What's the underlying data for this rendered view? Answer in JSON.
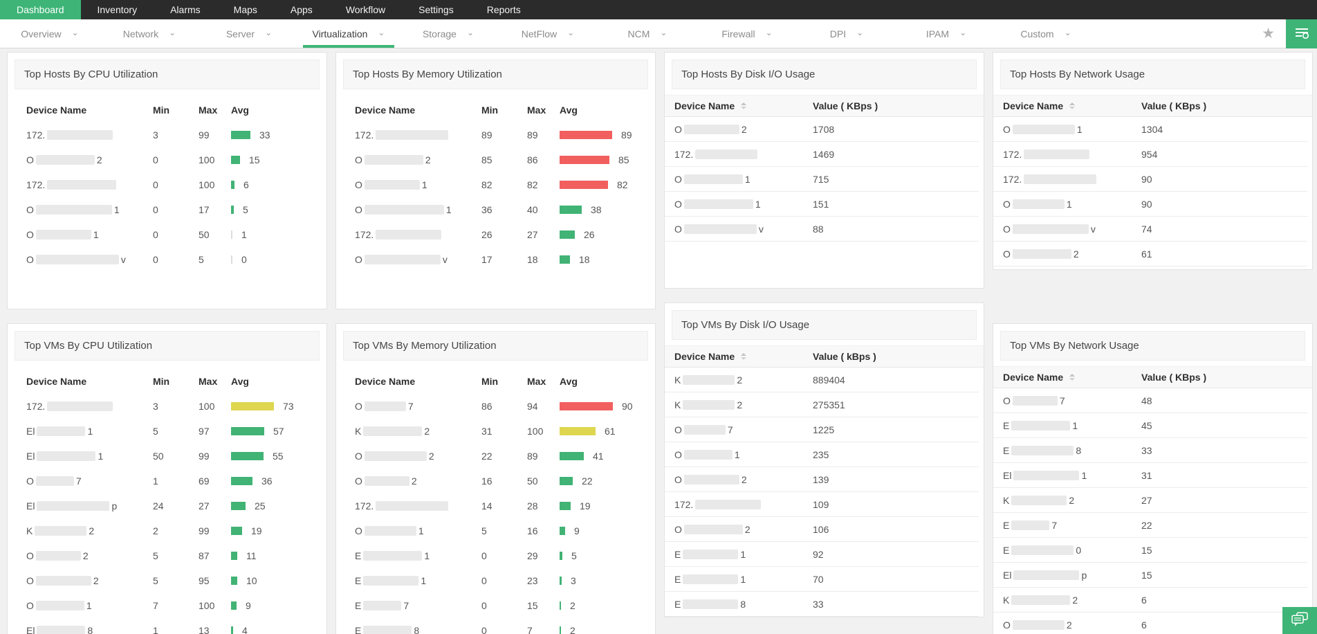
{
  "topnav": {
    "items": [
      {
        "label": "Dashboard",
        "active": true
      },
      {
        "label": "Inventory"
      },
      {
        "label": "Alarms"
      },
      {
        "label": "Maps"
      },
      {
        "label": "Apps"
      },
      {
        "label": "Workflow"
      },
      {
        "label": "Settings"
      },
      {
        "label": "Reports"
      }
    ]
  },
  "tabbar": {
    "tabs": [
      {
        "label": "Overview"
      },
      {
        "label": "Network"
      },
      {
        "label": "Server"
      },
      {
        "label": "Virtualization",
        "active": true
      },
      {
        "label": "Storage"
      },
      {
        "label": "NetFlow"
      },
      {
        "label": "NCM"
      },
      {
        "label": "Firewall"
      },
      {
        "label": "DPI"
      },
      {
        "label": "IPAM"
      },
      {
        "label": "Custom"
      }
    ],
    "favorite_icon": "star-icon",
    "menu_button_icon": "list-lines-icon"
  },
  "colors": {
    "accent": "#3eb577",
    "bar_green": "#41b375",
    "bar_red": "#f25f5f",
    "bar_yellow": "#ded64e",
    "bar_zero": "#dddddd"
  },
  "columns": [
    [
      {
        "key": "hosts-cpu",
        "title": "Top Hosts By CPU Utilization",
        "type": "util",
        "columns": [
          "Device Name",
          "Min",
          "Max",
          "Avg"
        ],
        "rows": [
          {
            "pre": "172.",
            "redact": 95,
            "post": "",
            "min": "3",
            "max": "99",
            "avg": 33,
            "c": "green"
          },
          {
            "pre": "O",
            "redact": 85,
            "post": "2",
            "min": "0",
            "max": "100",
            "avg": 15,
            "c": "green"
          },
          {
            "pre": "172.",
            "redact": 100,
            "post": "",
            "min": "0",
            "max": "100",
            "avg": 6,
            "c": "green"
          },
          {
            "pre": "O",
            "redact": 110,
            "post": "1",
            "min": "0",
            "max": "17",
            "avg": 5,
            "c": "green"
          },
          {
            "pre": "O",
            "redact": 80,
            "post": "1",
            "min": "0",
            "max": "50",
            "avg": 1,
            "c": "green"
          },
          {
            "pre": "O",
            "redact": 120,
            "post": "v",
            "min": "0",
            "max": "5",
            "avg": 0,
            "c": "green"
          }
        ]
      },
      {
        "key": "vms-cpu",
        "title": "Top VMs By CPU Utilization",
        "type": "util",
        "columns": [
          "Device Name",
          "Min",
          "Max",
          "Avg"
        ],
        "rows": [
          {
            "pre": "172.",
            "redact": 95,
            "post": "",
            "min": "3",
            "max": "100",
            "avg": 73,
            "c": "yellow"
          },
          {
            "pre": "El",
            "redact": 70,
            "post": "1",
            "min": "5",
            "max": "97",
            "avg": 57,
            "c": "green"
          },
          {
            "pre": "El",
            "redact": 85,
            "post": "1",
            "min": "50",
            "max": "99",
            "avg": 55,
            "c": "green"
          },
          {
            "pre": "O",
            "redact": 55,
            "post": "7",
            "min": "1",
            "max": "69",
            "avg": 36,
            "c": "green"
          },
          {
            "pre": "El",
            "redact": 105,
            "post": "p",
            "min": "24",
            "max": "27",
            "avg": 25,
            "c": "green"
          },
          {
            "pre": "K",
            "redact": 75,
            "post": "2",
            "min": "2",
            "max": "99",
            "avg": 19,
            "c": "green"
          },
          {
            "pre": "O",
            "redact": 65,
            "post": "2",
            "min": "5",
            "max": "87",
            "avg": 11,
            "c": "green"
          },
          {
            "pre": "O",
            "redact": 80,
            "post": "2",
            "min": "5",
            "max": "95",
            "avg": 10,
            "c": "green"
          },
          {
            "pre": "O",
            "redact": 70,
            "post": "1",
            "min": "7",
            "max": "100",
            "avg": 9,
            "c": "green"
          },
          {
            "pre": "El",
            "redact": 70,
            "post": "8",
            "min": "1",
            "max": "13",
            "avg": 4,
            "c": "green"
          }
        ]
      }
    ],
    [
      {
        "key": "hosts-mem",
        "title": "Top Hosts By Memory Utilization",
        "type": "util",
        "columns": [
          "Device Name",
          "Min",
          "Max",
          "Avg"
        ],
        "rows": [
          {
            "pre": "172.",
            "redact": 105,
            "post": "",
            "min": "89",
            "max": "89",
            "avg": 89,
            "c": "red"
          },
          {
            "pre": "O",
            "redact": 85,
            "post": "2",
            "min": "85",
            "max": "86",
            "avg": 85,
            "c": "red"
          },
          {
            "pre": "O",
            "redact": 80,
            "post": "1",
            "min": "82",
            "max": "82",
            "avg": 82,
            "c": "red"
          },
          {
            "pre": "O",
            "redact": 115,
            "post": "1",
            "min": "36",
            "max": "40",
            "avg": 38,
            "c": "green"
          },
          {
            "pre": "172.",
            "redact": 95,
            "post": "",
            "min": "26",
            "max": "27",
            "avg": 26,
            "c": "green"
          },
          {
            "pre": "O",
            "redact": 110,
            "post": "v",
            "min": "17",
            "max": "18",
            "avg": 18,
            "c": "green"
          }
        ]
      },
      {
        "key": "vms-mem",
        "title": "Top VMs By Memory Utilization",
        "type": "util",
        "columns": [
          "Device Name",
          "Min",
          "Max",
          "Avg"
        ],
        "rows": [
          {
            "pre": "O",
            "redact": 60,
            "post": "7",
            "min": "86",
            "max": "94",
            "avg": 90,
            "c": "red"
          },
          {
            "pre": "K",
            "redact": 85,
            "post": "2",
            "min": "31",
            "max": "100",
            "avg": 61,
            "c": "yellow"
          },
          {
            "pre": "O",
            "redact": 90,
            "post": "2",
            "min": "22",
            "max": "89",
            "avg": 41,
            "c": "green"
          },
          {
            "pre": "O",
            "redact": 65,
            "post": "2",
            "min": "16",
            "max": "50",
            "avg": 22,
            "c": "green"
          },
          {
            "pre": "172.",
            "redact": 105,
            "post": "",
            "min": "14",
            "max": "28",
            "avg": 19,
            "c": "green"
          },
          {
            "pre": "O",
            "redact": 75,
            "post": "1",
            "min": "5",
            "max": "16",
            "avg": 9,
            "c": "green"
          },
          {
            "pre": "E",
            "redact": 85,
            "post": "1",
            "min": "0",
            "max": "29",
            "avg": 5,
            "c": "green"
          },
          {
            "pre": "E",
            "redact": 80,
            "post": "1",
            "min": "0",
            "max": "23",
            "avg": 3,
            "c": "green"
          },
          {
            "pre": "E",
            "redact": 55,
            "post": "7",
            "min": "0",
            "max": "15",
            "avg": 2,
            "c": "green"
          },
          {
            "pre": "E",
            "redact": 70,
            "post": "8",
            "min": "0",
            "max": "7",
            "avg": 2,
            "c": "green"
          }
        ]
      }
    ],
    [
      {
        "key": "hosts-disk",
        "title": "Top Hosts By Disk I/O Usage",
        "type": "value",
        "columns": [
          "Device Name",
          "Value ( KBps )"
        ],
        "rows": [
          {
            "pre": "O",
            "redact": 80,
            "post": "2",
            "value": "1708"
          },
          {
            "pre": "172.",
            "redact": 90,
            "post": "",
            "value": "1469"
          },
          {
            "pre": "O",
            "redact": 85,
            "post": "1",
            "value": "715"
          },
          {
            "pre": "O",
            "redact": 100,
            "post": "1",
            "value": "151"
          },
          {
            "pre": "O",
            "redact": 105,
            "post": "v",
            "value": "88"
          }
        ]
      },
      {
        "key": "vms-disk",
        "title": "Top VMs By Disk I/O Usage",
        "type": "value",
        "columns": [
          "Device Name",
          "Value ( kBps )"
        ],
        "rows": [
          {
            "pre": "K",
            "redact": 75,
            "post": "2",
            "value": "889404"
          },
          {
            "pre": "K",
            "redact": 75,
            "post": "2",
            "value": "275351"
          },
          {
            "pre": "O",
            "redact": 60,
            "post": "7",
            "value": "1225"
          },
          {
            "pre": "O",
            "redact": 70,
            "post": "1",
            "value": "235"
          },
          {
            "pre": "O",
            "redact": 80,
            "post": "2",
            "value": "139"
          },
          {
            "pre": "172.",
            "redact": 95,
            "post": "",
            "value": "109"
          },
          {
            "pre": "O",
            "redact": 85,
            "post": "2",
            "value": "106"
          },
          {
            "pre": "E",
            "redact": 80,
            "post": "1",
            "value": "92"
          },
          {
            "pre": "E",
            "redact": 80,
            "post": "1",
            "value": "70"
          },
          {
            "pre": "E",
            "redact": 80,
            "post": "8",
            "value": "33"
          }
        ]
      }
    ],
    [
      {
        "key": "hosts-net",
        "title": "Top Hosts By Network Usage",
        "type": "value",
        "columns": [
          "Device Name",
          "Value ( KBps )"
        ],
        "rows": [
          {
            "pre": "O",
            "redact": 90,
            "post": "1",
            "value": "1304"
          },
          {
            "pre": "172.",
            "redact": 95,
            "post": "",
            "value": "954"
          },
          {
            "pre": "172.",
            "redact": 105,
            "post": "",
            "value": "90"
          },
          {
            "pre": "O",
            "redact": 75,
            "post": "1",
            "value": "90"
          },
          {
            "pre": "O",
            "redact": 110,
            "post": "v",
            "value": "74"
          },
          {
            "pre": "O",
            "redact": 85,
            "post": "2",
            "value": "61"
          }
        ]
      },
      {
        "key": "vms-net",
        "title": "Top VMs By Network Usage",
        "type": "value",
        "columns": [
          "Device Name",
          "Value ( KBps )"
        ],
        "rows": [
          {
            "pre": "O",
            "redact": 65,
            "post": "7",
            "value": "48"
          },
          {
            "pre": "E",
            "redact": 85,
            "post": "1",
            "value": "45"
          },
          {
            "pre": "E",
            "redact": 90,
            "post": "8",
            "value": "33"
          },
          {
            "pre": "El",
            "redact": 95,
            "post": "1",
            "value": "31"
          },
          {
            "pre": "K",
            "redact": 80,
            "post": "2",
            "value": "27"
          },
          {
            "pre": "E",
            "redact": 55,
            "post": "7",
            "value": "22"
          },
          {
            "pre": "E",
            "redact": 90,
            "post": "0",
            "value": "15"
          },
          {
            "pre": "El",
            "redact": 95,
            "post": "p",
            "value": "15"
          },
          {
            "pre": "K",
            "redact": 85,
            "post": "2",
            "value": "6"
          },
          {
            "pre": "O",
            "redact": 75,
            "post": "2",
            "value": "6"
          }
        ]
      }
    ]
  ],
  "chat_button": {
    "icon": "chat-bubbles-icon"
  }
}
